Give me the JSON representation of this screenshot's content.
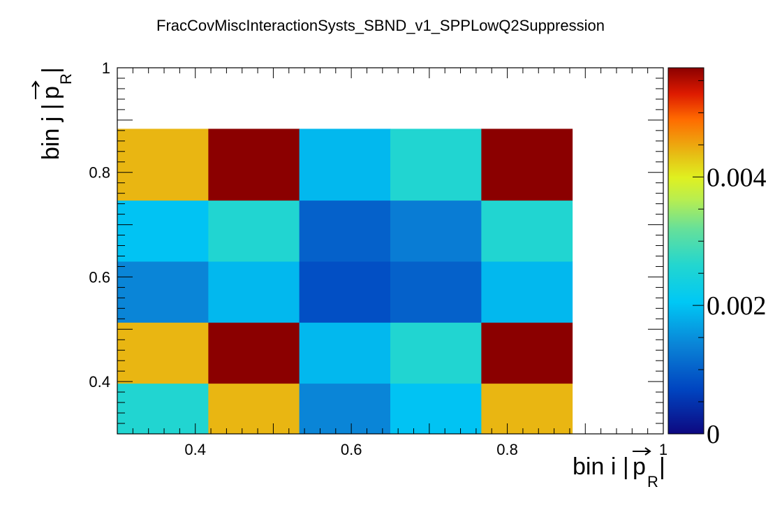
{
  "chart_data": {
    "type": "heatmap",
    "title": "FracCovMiscInteractionSysts_SBND_v1_SPPLowQ2Suppression",
    "xlabel": {
      "main": "bin i |",
      "vec": "p",
      "sub": "R",
      "close": "|"
    },
    "ylabel": {
      "main": "bin j |",
      "vec": "p",
      "sub": "R",
      "close": "|"
    },
    "xlim": [
      0.3,
      1.0
    ],
    "ylim": [
      0.3,
      1.0
    ],
    "x_edges": [
      0.3,
      0.4167,
      0.5333,
      0.65,
      0.7667,
      0.8833
    ],
    "y_edges": [
      0.3,
      0.3967,
      0.5133,
      0.63,
      0.7467,
      0.8833
    ],
    "x_ticks": [
      {
        "value": 0.4,
        "label": "0.4"
      },
      {
        "value": 0.6,
        "label": "0.6"
      },
      {
        "value": 0.8,
        "label": "0.8"
      },
      {
        "value": 1.0,
        "label": "1"
      }
    ],
    "y_ticks": [
      {
        "value": 0.4,
        "label": "0.4"
      },
      {
        "value": 0.6,
        "label": "0.6"
      },
      {
        "value": 0.8,
        "label": "0.8"
      },
      {
        "value": 1.0,
        "label": "1"
      }
    ],
    "z_range": [
      0,
      0.0057
    ],
    "z_ticks": [
      {
        "value": 0,
        "label": "0"
      },
      {
        "value": 0.002,
        "label": "0.002"
      },
      {
        "value": 0.004,
        "label": "0.004"
      }
    ],
    "values": [
      [
        0.0026,
        0.0044,
        0.0014,
        0.002,
        0.0044
      ],
      [
        0.0044,
        0.0057,
        0.0019,
        0.0026,
        0.0057
      ],
      [
        0.0014,
        0.0019,
        0.0008,
        0.001,
        0.0019
      ],
      [
        0.002,
        0.0026,
        0.001,
        0.0013,
        0.0026
      ],
      [
        0.0044,
        0.0057,
        0.0019,
        0.0026,
        0.0057
      ]
    ],
    "colormap": "root-kBird-like",
    "grid": false
  }
}
